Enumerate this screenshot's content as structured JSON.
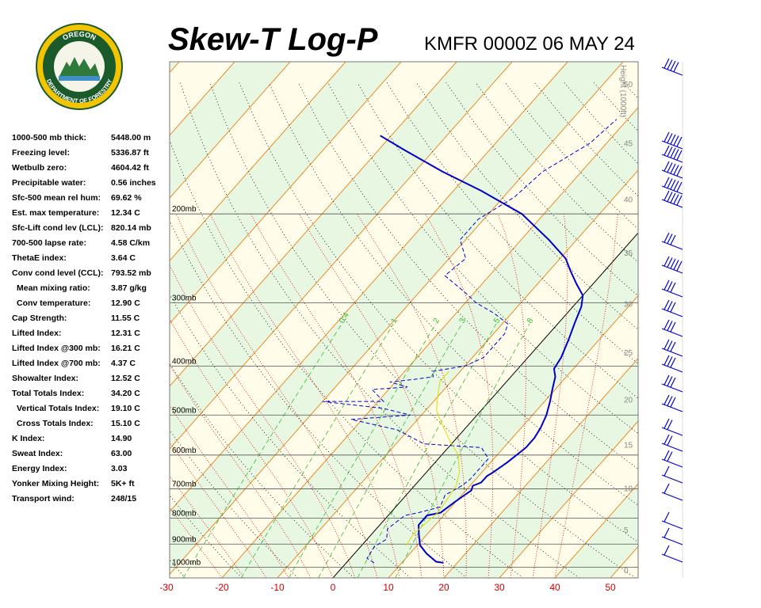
{
  "logo": {
    "top_text": "OREGON",
    "bottom_text": "DEPARTMENT OF FORESTRY"
  },
  "title": "Skew-T Log-P",
  "station_label": "KMFR 0000Z 06 MAY 24",
  "indices": [
    {
      "label": "1000-500 mb thick:",
      "value": "5448.00 m"
    },
    {
      "label": "Freezing level:",
      "value": "5336.87 ft"
    },
    {
      "label": "Wetbulb zero:",
      "value": "4604.42 ft"
    },
    {
      "label": "Precipitable water:",
      "value": "0.56 inches"
    },
    {
      "label": "Sfc-500 mean rel hum:",
      "value": "69.62 %"
    },
    {
      "label": "Est. max temperature:",
      "value": "12.34 C"
    },
    {
      "label": "Sfc-Lift cond lev (LCL):",
      "value": "820.14 mb"
    },
    {
      "label": "700-500 lapse rate:",
      "value": "4.58 C/km"
    },
    {
      "label": "ThetaE index:",
      "value": "3.64 C"
    },
    {
      "label": "Conv cond level (CCL):",
      "value": "793.52 mb"
    },
    {
      "label": "Mean mixing ratio:",
      "value": "3.87 g/kg",
      "indent": true
    },
    {
      "label": "Conv temperature:",
      "value": "12.90 C",
      "indent": true
    },
    {
      "label": "Cap Strength:",
      "value": "11.55 C"
    },
    {
      "label": "Lifted Index:",
      "value": "12.31 C"
    },
    {
      "label": "Lifted Index @300 mb:",
      "value": "16.21 C"
    },
    {
      "label": "Lifted Index @700 mb:",
      "value": "4.37 C"
    },
    {
      "label": "Showalter Index:",
      "value": "12.52 C"
    },
    {
      "label": "Total Totals Index:",
      "value": "34.20 C"
    },
    {
      "label": "Vertical Totals Index:",
      "value": "19.10 C",
      "indent": true
    },
    {
      "label": "Cross Totals Index:",
      "value": "15.10 C",
      "indent": true
    },
    {
      "label": "K Index:",
      "value": "14.90"
    },
    {
      "label": "Sweat Index:",
      "value": "63.00"
    },
    {
      "label": "Energy Index:",
      "value": "3.03"
    },
    {
      "label": "Yonker Mixing Height:",
      "value": "5K+ ft"
    },
    {
      "label": "Transport wind:",
      "value": "248/15"
    }
  ],
  "chart_data": {
    "type": "line",
    "title": "Skew-T Log-P",
    "subtitle": "KMFR 0000Z 06 MAY 24",
    "xlim": [
      -30,
      55
    ],
    "ylim_mb": [
      1050,
      100
    ],
    "x_ticks": [
      "-30",
      "-20",
      "-10",
      "0",
      "10",
      "20",
      "30",
      "40",
      "50"
    ],
    "pressure_labels": [
      "200mb",
      "300mb",
      "400mb",
      "500mb",
      "600mb",
      "700mb",
      "800mb",
      "900mb",
      "1000mb"
    ],
    "height_axis_label": "Height (1000ft)",
    "height_ticks": [
      "0",
      "5",
      "10",
      "15",
      "20",
      "25",
      "30",
      "35",
      "40",
      "45",
      "50"
    ],
    "mixing_ratio_labels": [
      "0.4",
      "1",
      "2",
      "3",
      "5",
      "8"
    ],
    "series": [
      {
        "role": "temperature",
        "color": "#0000cc",
        "style": "solid",
        "points": [
          [
            17.5,
            980
          ],
          [
            16,
            975
          ],
          [
            13,
            940
          ],
          [
            10.5,
            905
          ],
          [
            8.5,
            860
          ],
          [
            7,
            825
          ],
          [
            7,
            790
          ],
          [
            9,
            780
          ],
          [
            9.8,
            745
          ],
          [
            10.5,
            720
          ],
          [
            11,
            705
          ],
          [
            10.5,
            690
          ],
          [
            11.5,
            680
          ],
          [
            11.5,
            660
          ],
          [
            12,
            650
          ],
          [
            13,
            620
          ],
          [
            14,
            580
          ],
          [
            14,
            555
          ],
          [
            13.5,
            530
          ],
          [
            12.5,
            500
          ],
          [
            11,
            470
          ],
          [
            9.5,
            445
          ],
          [
            8,
            420
          ],
          [
            6.5,
            405
          ],
          [
            6,
            385
          ],
          [
            4.5,
            355
          ],
          [
            3,
            330
          ],
          [
            1.5,
            305
          ],
          [
            0,
            290
          ],
          [
            -3,
            275
          ],
          [
            -6,
            260
          ],
          [
            -9,
            245
          ],
          [
            -15,
            225
          ],
          [
            -24,
            200
          ],
          [
            -35,
            180
          ],
          [
            -45,
            165
          ],
          [
            -55,
            150
          ],
          [
            -62,
            140
          ]
        ]
      },
      {
        "role": "dewpoint",
        "color": "#0000cc",
        "style": "dashed",
        "points": [
          [
            5,
            980
          ],
          [
            3,
            960
          ],
          [
            2.5,
            910
          ],
          [
            3.5,
            880
          ],
          [
            2,
            840
          ],
          [
            3,
            790
          ],
          [
            5,
            780
          ],
          [
            8,
            760
          ],
          [
            7,
            720
          ],
          [
            8.5,
            690
          ],
          [
            9,
            670
          ],
          [
            9,
            650
          ],
          [
            9,
            610
          ],
          [
            6,
            580
          ],
          [
            -5,
            570
          ],
          [
            -12,
            535
          ],
          [
            -22,
            510
          ],
          [
            -12,
            500
          ],
          [
            -18,
            485
          ],
          [
            -30,
            470
          ],
          [
            -19,
            470
          ],
          [
            -23,
            445
          ],
          [
            -17,
            440
          ],
          [
            -21,
            430
          ],
          [
            -17,
            425
          ],
          [
            -14,
            420
          ],
          [
            -15,
            410
          ],
          [
            -10,
            400
          ],
          [
            -8,
            385
          ],
          [
            -8,
            345
          ],
          [
            -9,
            330
          ],
          [
            -13,
            315
          ],
          [
            -18,
            300
          ],
          [
            -22,
            285
          ],
          [
            -28,
            265
          ],
          [
            -27,
            245
          ],
          [
            -31,
            225
          ],
          [
            -31,
            205
          ],
          [
            -28,
            185
          ],
          [
            -27,
            165
          ],
          [
            -23,
            145
          ],
          [
            -22,
            130
          ]
        ]
      },
      {
        "role": "parcel",
        "color": "#dddd00",
        "style": "solid",
        "points": [
          [
            8,
            905
          ],
          [
            7.5,
            860
          ],
          [
            8,
            820
          ],
          [
            8.5,
            780
          ],
          [
            8,
            730
          ],
          [
            7.5,
            690
          ],
          [
            6,
            650
          ],
          [
            3,
            600
          ],
          [
            -1,
            560
          ],
          [
            -5,
            520
          ],
          [
            -8,
            490
          ],
          [
            -10,
            460
          ],
          [
            -12,
            430
          ],
          [
            -12,
            410
          ]
        ]
      }
    ],
    "wind_barbs_column": true,
    "background_colors": {
      "band_a": "#e8f7e1",
      "band_b": "#fffde9",
      "isotherm": "#e88a2a",
      "dry_adiabat": "#000000",
      "moist_adiabat": "#dd0000",
      "mixing_ratio": "#33bb33",
      "zero_isotherm": "#000000"
    }
  }
}
